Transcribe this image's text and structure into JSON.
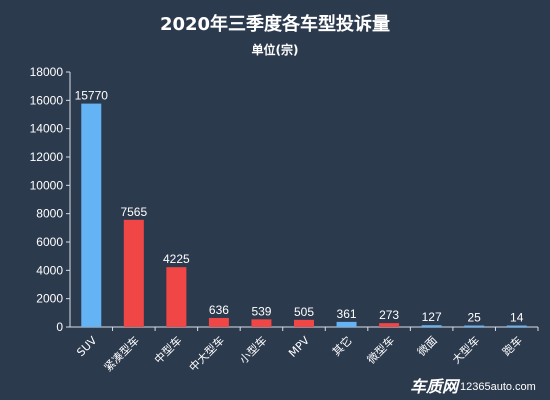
{
  "chart_data": {
    "type": "bar",
    "title": "2020年三季度各车型投诉量",
    "subtitle": "单位(宗)",
    "categories": [
      "SUV",
      "紧凑型车",
      "中型车",
      "中大型车",
      "小型车",
      "MPV",
      "其它",
      "微型车",
      "微面",
      "大型车",
      "跑车"
    ],
    "values": [
      15770,
      7565,
      4225,
      636,
      539,
      505,
      361,
      273,
      127,
      25,
      14
    ],
    "bar_colors": [
      "#63b3f5",
      "#f04646",
      "#f04646",
      "#f04646",
      "#f04646",
      "#f04646",
      "#63b3f5",
      "#f04646",
      "#63b3f5",
      "#63b3f5",
      "#63b3f5"
    ],
    "ylim": [
      0,
      18000
    ],
    "yticks": [
      0,
      2000,
      4000,
      6000,
      8000,
      10000,
      12000,
      14000,
      16000,
      18000
    ],
    "grid": false,
    "legend": "none"
  },
  "watermark": {
    "brand": "车质网",
    "url": "12365auto.com"
  }
}
